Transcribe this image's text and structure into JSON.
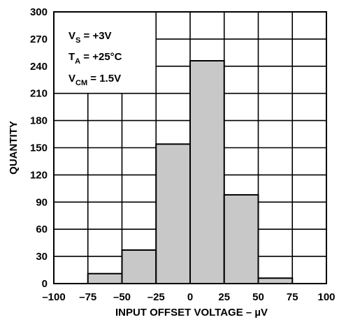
{
  "chart_data": {
    "type": "bar",
    "title": "",
    "xlabel": "INPUT OFFSET VOLTAGE – µV",
    "ylabel": "QUANTITY",
    "xlim": [
      -100,
      100
    ],
    "ylim": [
      0,
      300
    ],
    "x_ticks": [
      -100,
      -75,
      -50,
      -25,
      0,
      25,
      50,
      75,
      100
    ],
    "y_ticks": [
      0,
      30,
      60,
      90,
      120,
      150,
      180,
      210,
      240,
      270,
      300
    ],
    "x_tick_labels": [
      "–100",
      "–75",
      "–50",
      "–25",
      "0",
      "25",
      "50",
      "75",
      "100"
    ],
    "y_tick_labels": [
      "0",
      "30",
      "60",
      "90",
      "120",
      "150",
      "180",
      "210",
      "240",
      "270",
      "300"
    ],
    "grid": true,
    "bars": [
      {
        "x0": -75,
        "x1": -50,
        "value": 11
      },
      {
        "x0": -50,
        "x1": -25,
        "value": 37
      },
      {
        "x0": -25,
        "x1": 0,
        "value": 154
      },
      {
        "x0": 0,
        "x1": 25,
        "value": 246
      },
      {
        "x0": 25,
        "x1": 50,
        "value": 98
      },
      {
        "x0": 50,
        "x1": 75,
        "value": 6
      }
    ],
    "bar_color": "#c8c8c8",
    "annotations": [
      {
        "main": "V",
        "sub": "S",
        "rest": " = +3V"
      },
      {
        "main": "T",
        "sub": "A",
        "rest": " = +25°C"
      },
      {
        "main": "V",
        "sub": "CM",
        "rest": " = 1.5V"
      }
    ]
  }
}
